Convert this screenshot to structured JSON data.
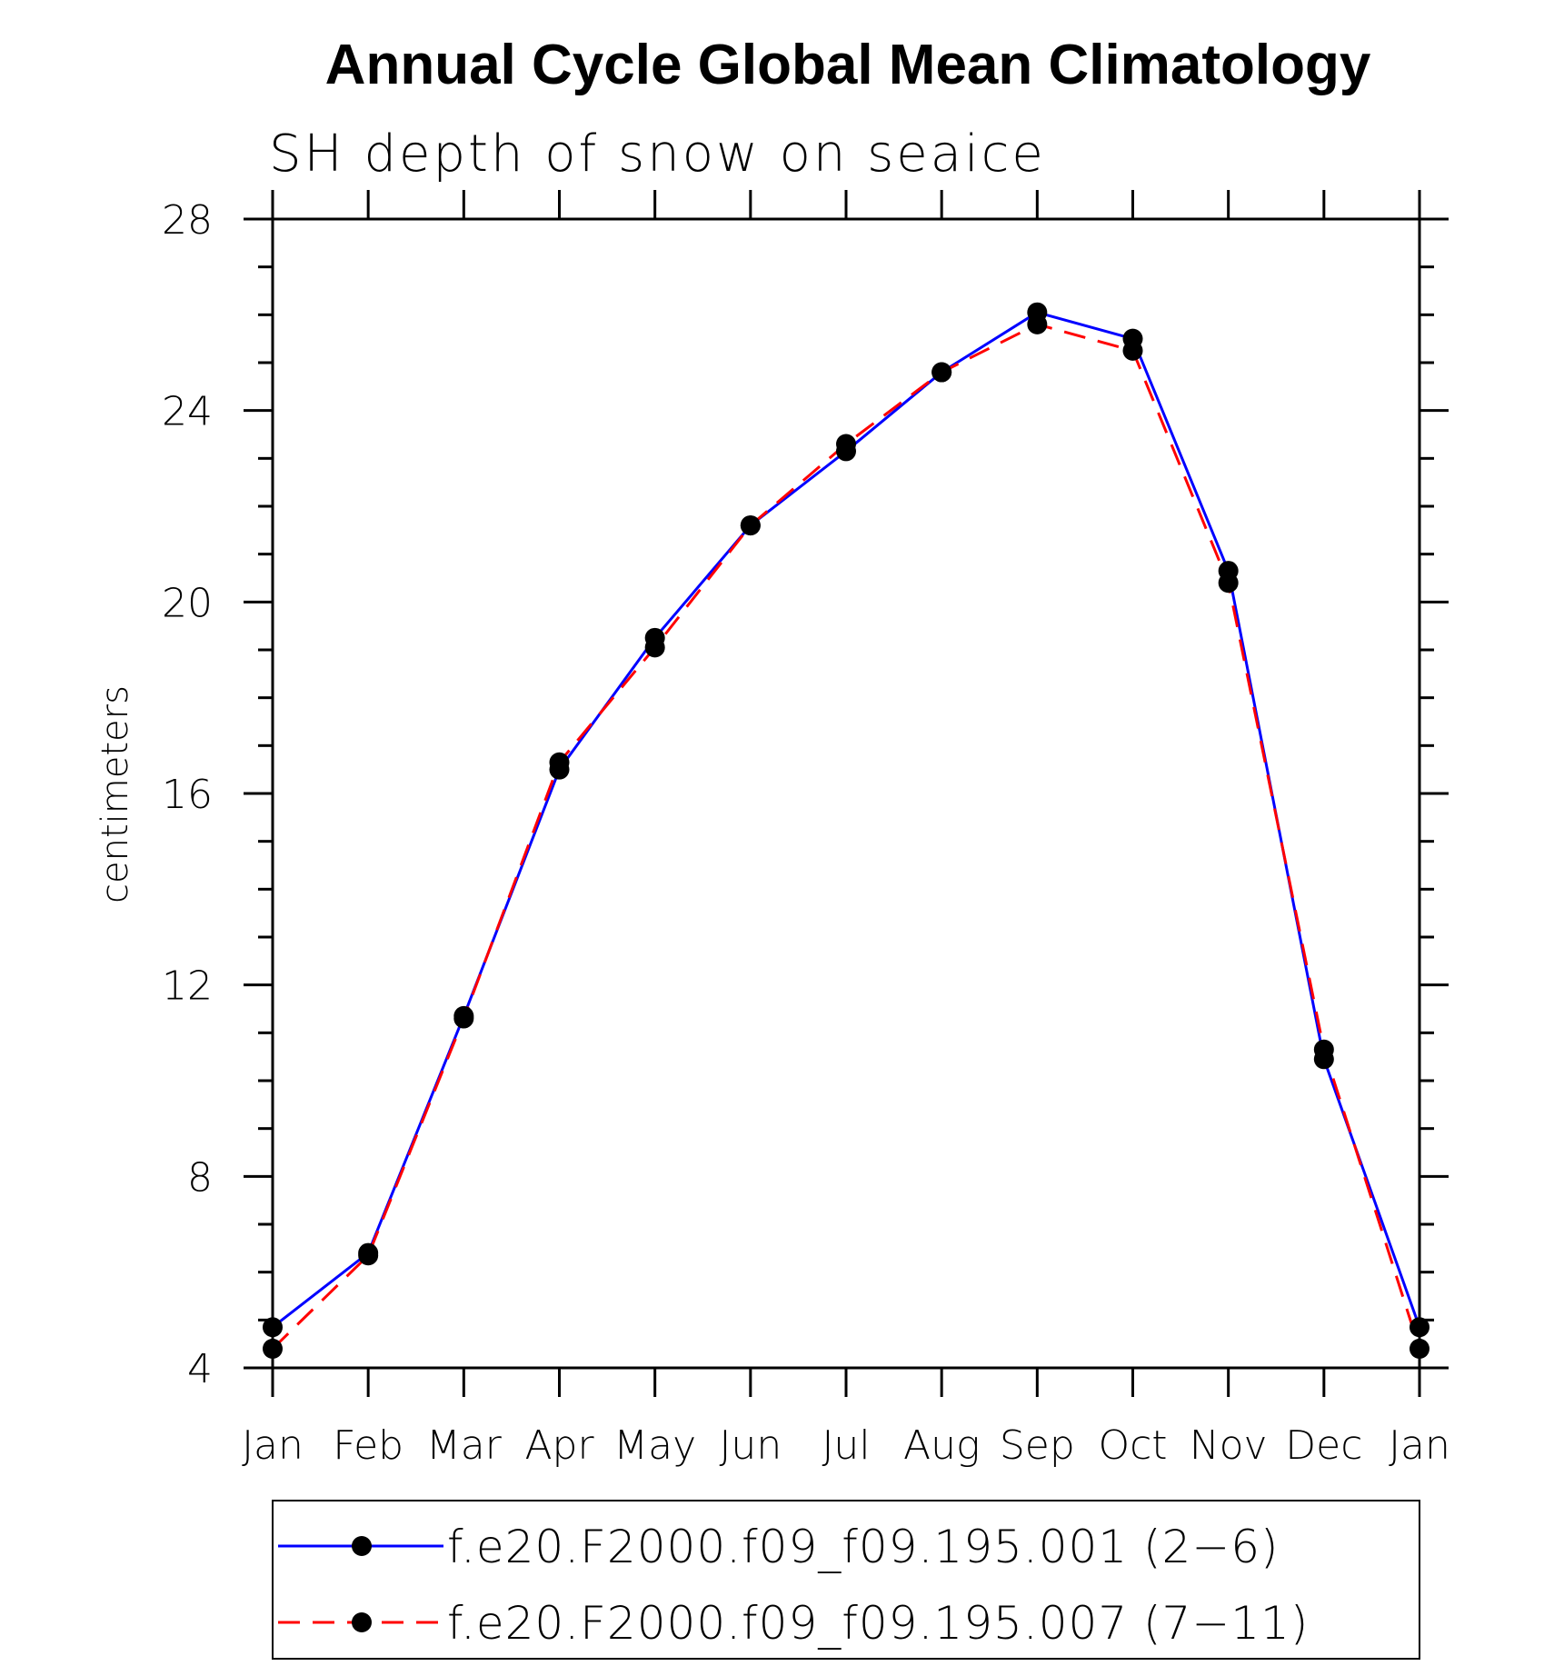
{
  "chart_data": {
    "type": "line",
    "title": "Annual Cycle Global Mean Climatology",
    "subtitle": "SH depth of snow on seaice",
    "xlabel": "",
    "ylabel": "centimeters",
    "categories": [
      "Jan",
      "Feb",
      "Mar",
      "Apr",
      "May",
      "Jun",
      "Jul",
      "Aug",
      "Sep",
      "Oct",
      "Nov",
      "Dec",
      "Jan"
    ],
    "ylim": [
      4,
      28
    ],
    "yticks": [
      "4",
      "8",
      "12",
      "16",
      "20",
      "24",
      "28"
    ],
    "y_minor_step": 1,
    "grid": false,
    "legend_position": "bottom",
    "series": [
      {
        "name": "f.e20.F2000.f09_f09.195.001 (2−6)",
        "color": "#0000ff",
        "line_style": "solid",
        "marker": "filled-circle",
        "values": [
          4.85,
          6.4,
          11.35,
          16.5,
          19.25,
          21.6,
          23.15,
          24.8,
          26.05,
          25.5,
          20.65,
          10.45,
          4.85
        ]
      },
      {
        "name": "f.e20.F2000.f09_f09.195.007 (7−11)",
        "color": "#ff0000",
        "line_style": "dashed",
        "marker": "filled-circle",
        "values": [
          4.4,
          6.35,
          11.3,
          16.65,
          19.05,
          21.6,
          23.3,
          24.8,
          25.8,
          25.25,
          20.4,
          10.65,
          4.4
        ]
      }
    ]
  }
}
